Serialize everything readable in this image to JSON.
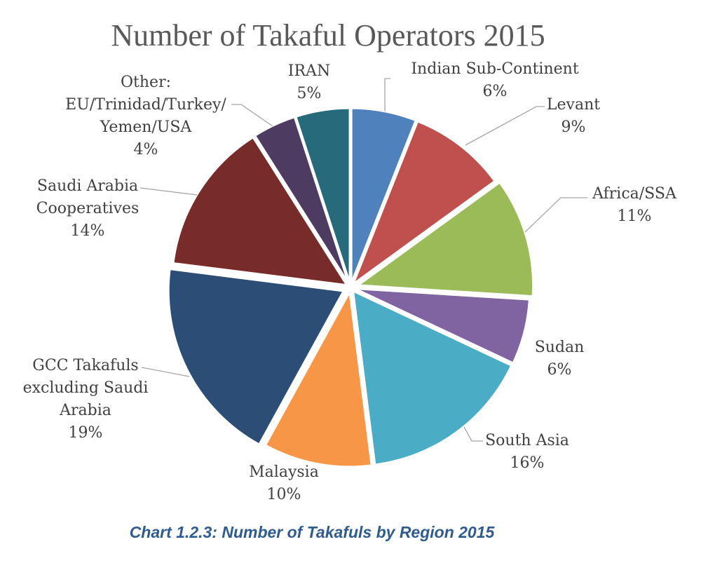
{
  "chart_data": {
    "type": "pie",
    "title": "Number of Takaful Operators 2015",
    "categories": [
      "Indian Sub-Continent",
      "Levant",
      "Africa/SSA",
      "Sudan",
      "South Asia",
      "Malaysia",
      "GCC Takafuls excluding Saudi Arabia",
      "Saudi Arabia Cooperatives",
      "Other: EU/Trinidad/Turkey/Yemen/USA",
      "IRAN"
    ],
    "values": [
      6,
      9,
      11,
      6,
      16,
      10,
      19,
      14,
      4,
      5
    ],
    "unit": "%",
    "colors": [
      "#4F81BD",
      "#C0504D",
      "#9BBB59",
      "#8064A2",
      "#4BACC6",
      "#F79646",
      "#2C4D75",
      "#772C2A",
      "#4D3B62",
      "#276A7C"
    ],
    "legend": "none",
    "exploded": true
  },
  "caption": "Chart 1.2.3: Number of Takafuls by Region 2015"
}
